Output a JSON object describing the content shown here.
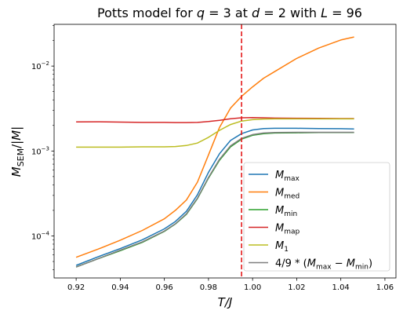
{
  "chart_data": {
    "type": "line",
    "title": "Potts model for q = 3 at d = 2 with L = 96",
    "title_parts": [
      {
        "t": "Potts model for "
      },
      {
        "t": "q",
        "i": true
      },
      {
        "t": " = 3 at "
      },
      {
        "t": "d",
        "i": true
      },
      {
        "t": " = 2 with "
      },
      {
        "t": "L",
        "i": true
      },
      {
        "t": " = 96"
      }
    ],
    "xlabel": "T/J",
    "ylabel": "M_SEM/|M|",
    "xlim": [
      0.91,
      1.065
    ],
    "ylim": [
      3.2e-05,
      0.031
    ],
    "yscale": "log",
    "grid": false,
    "legend_position": "lower right",
    "x_ticks": [
      {
        "value": 0.92,
        "label": "0.92"
      },
      {
        "value": 0.94,
        "label": "0.94"
      },
      {
        "value": 0.96,
        "label": "0.96"
      },
      {
        "value": 0.98,
        "label": "0.98"
      },
      {
        "value": 1.0,
        "label": "1.00"
      },
      {
        "value": 1.02,
        "label": "1.02"
      },
      {
        "value": 1.04,
        "label": "1.04"
      },
      {
        "value": 1.06,
        "label": "1.06"
      }
    ],
    "y_ticks": [
      {
        "value": 0.0001,
        "base": "10",
        "exp": "−4"
      },
      {
        "value": 0.001,
        "base": "10",
        "exp": "−3"
      },
      {
        "value": 0.01,
        "base": "10",
        "exp": "−2"
      }
    ],
    "vline": {
      "x": 0.995,
      "color": "#e41a1c"
    },
    "x": [
      0.92,
      0.93,
      0.94,
      0.95,
      0.96,
      0.965,
      0.97,
      0.975,
      0.98,
      0.985,
      0.99,
      0.995,
      1.0,
      1.005,
      1.01,
      1.02,
      1.03,
      1.04,
      1.046
    ],
    "series": [
      {
        "name": "M_max",
        "label_main": "M",
        "label_sub": "max",
        "color": "#1f77b4",
        "values": [
          4.5e-05,
          5.7e-05,
          7.1e-05,
          9e-05,
          0.000121,
          0.000148,
          0.000195,
          0.000305,
          0.00056,
          0.00093,
          0.00133,
          0.0016,
          0.00177,
          0.00184,
          0.00185,
          0.00185,
          0.00184,
          0.00183,
          0.00182
        ]
      },
      {
        "name": "M_med",
        "label_main": "M",
        "label_sub": "med",
        "color": "#ff7f0e",
        "values": [
          5.6e-05,
          7e-05,
          8.9e-05,
          0.000116,
          0.000159,
          0.0002,
          0.000265,
          0.00043,
          0.0009,
          0.0019,
          0.0032,
          0.0044,
          0.0057,
          0.0072,
          0.0086,
          0.0123,
          0.0163,
          0.0203,
          0.022
        ]
      },
      {
        "name": "M_min",
        "label_main": "M",
        "label_sub": "min",
        "color": "#2ca02c",
        "values": [
          4.3e-05,
          5.4e-05,
          6.7e-05,
          8.4e-05,
          0.000113,
          0.000138,
          0.00018,
          0.000275,
          0.00048,
          0.00078,
          0.00112,
          0.00138,
          0.00153,
          0.0016,
          0.00163,
          0.00164,
          0.00165,
          0.00165,
          0.00165
        ]
      },
      {
        "name": "M_map",
        "label_main": "M",
        "label_sub": "map",
        "color": "#d62728",
        "values": [
          0.0022,
          0.00221,
          0.00219,
          0.00217,
          0.00217,
          0.00216,
          0.00216,
          0.00217,
          0.00222,
          0.0023,
          0.0024,
          0.00246,
          0.00247,
          0.00246,
          0.00244,
          0.00243,
          0.00242,
          0.00241,
          0.00241
        ]
      },
      {
        "name": "M_1",
        "label_main": "M",
        "label_sub": "1",
        "color": "#bcbd22",
        "values": [
          0.00111,
          0.00111,
          0.00111,
          0.00112,
          0.00112,
          0.00113,
          0.00116,
          0.00124,
          0.00145,
          0.00175,
          0.00205,
          0.00225,
          0.00234,
          0.00238,
          0.00239,
          0.00239,
          0.00239,
          0.00239,
          0.00239
        ]
      },
      {
        "name": "4/9*(M_max - M_min)",
        "label_formula": "4/9 * (M_max − M_min)",
        "color": "#7f7f7f",
        "values": [
          4.3e-05,
          5.4e-05,
          6.8e-05,
          8.5e-05,
          0.000114,
          0.000139,
          0.000182,
          0.000278,
          0.000488,
          0.0008,
          0.00115,
          0.00141,
          0.00156,
          0.00163,
          0.00165,
          0.00166,
          0.00166,
          0.00166,
          0.00166
        ]
      }
    ]
  }
}
